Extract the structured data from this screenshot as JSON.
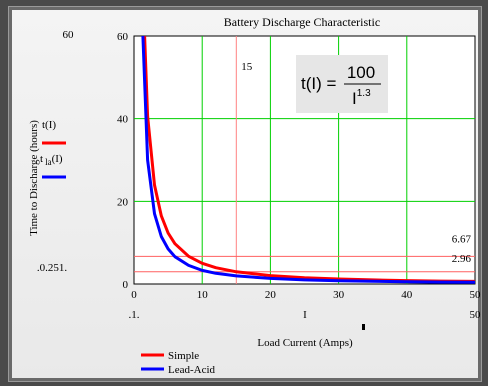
{
  "chart_data": {
    "type": "line",
    "title": "Battery Discharge Characteristic",
    "xlabel": "Load Current (Amps)",
    "ylabel": "Time to Discharge (hours)",
    "xlim": [
      0,
      50
    ],
    "ylim": [
      0,
      60
    ],
    "x_ticks": [
      "0",
      "10",
      "20",
      "30",
      "40",
      "50"
    ],
    "y_ticks": [
      "0",
      "20",
      "40",
      "60"
    ],
    "grid": true,
    "legend_position": "bottom-left",
    "series": [
      {
        "name": "Simple",
        "color": "#ff0000",
        "formula_coefficient": 100,
        "formula_exponent": 1.3,
        "x": [
          1.3,
          2,
          3,
          4,
          5,
          6,
          8,
          10,
          12,
          15,
          20,
          25,
          30,
          35,
          40,
          45,
          50
        ],
        "y": [
          71.1,
          40.6,
          23.96,
          16.49,
          12.33,
          9.74,
          6.7,
          5.01,
          3.95,
          2.96,
          2.03,
          1.52,
          1.2,
          0.98,
          0.83,
          0.71,
          0.62
        ]
      },
      {
        "name": "Lead-Acid",
        "color": "#0000ff",
        "x": [
          1.3,
          2,
          3,
          4,
          5,
          6,
          8,
          10,
          12,
          15,
          20,
          25,
          30,
          35,
          40,
          45,
          50
        ],
        "y": [
          60,
          30,
          17,
          11.5,
          8.5,
          6.6,
          4.5,
          3.3,
          2.6,
          1.95,
          1.35,
          1.0,
          0.8,
          0.65,
          0.55,
          0.47,
          0.41
        ]
      }
    ],
    "marker_line": {
      "x": 15,
      "label": "15"
    },
    "hlines": [
      {
        "y": 6.67,
        "label": "6.67",
        "color": "#ff6060"
      },
      {
        "y": 2.96,
        "label": "2.96",
        "color": "#ff6060"
      }
    ]
  },
  "labels": {
    "y_top_limit": "60",
    "y_bottom_limit": ".0.251.",
    "x_left_limit": ".1.",
    "x_mid_var": "I",
    "x_right_limit": "50",
    "legend_y_red": "t(I)",
    "legend_y_blue_main": "t",
    "legend_y_blue_sub": "la",
    "legend_y_blue_arg": "(I)"
  },
  "formula": {
    "lhs": "t(I) =",
    "numerator": "100",
    "denominator_base": "I",
    "denominator_exp": "1.3"
  },
  "colors": {
    "plot_bg": "#ffffff",
    "grid": "#00d000",
    "simple": "#ff0000",
    "lead_acid": "#0000ff",
    "marker": "#ff8080",
    "frame_bg": "#ececec",
    "formula_bg": "#e6e6e6"
  }
}
